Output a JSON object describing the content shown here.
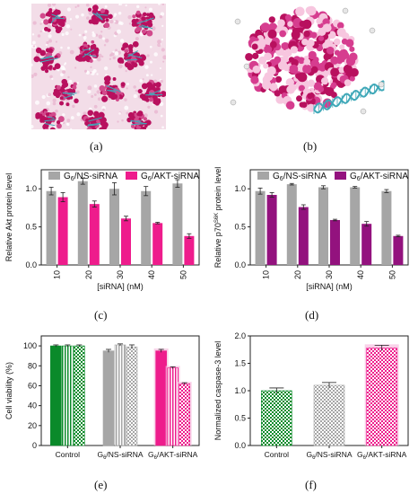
{
  "panel_labels": [
    "(a)",
    "(b)",
    "(c)",
    "(d)",
    "(e)",
    "(f)"
  ],
  "colors": {
    "grey": "#a6a6a6",
    "pink": "#ee1c8c",
    "purple": "#93127e",
    "green": "#0a8a2a",
    "light_pink": "#f7bfe0",
    "dark_pink": "#b8105e",
    "cyan": "#3fa8b8"
  },
  "chart_data": [
    {
      "panel": "(c)",
      "type": "bar",
      "ylabel": "Relative Akt protein level",
      "xlabel": "[siRNA] (nM)",
      "categories": [
        "10",
        "20",
        "30",
        "40",
        "50"
      ],
      "ylim": [
        0,
        1.25
      ],
      "yticks": [
        "0.0",
        "0.5",
        "1.0"
      ],
      "legend_position": "top",
      "series": [
        {
          "name": "G6/NS-siRNA",
          "color": "#a6a6a6",
          "values": [
            0.97,
            1.1,
            1.0,
            0.97,
            1.07
          ],
          "errors": [
            0.05,
            0.04,
            0.08,
            0.06,
            0.05
          ]
        },
        {
          "name": "G6/AKT-siRNA",
          "color": "#ee1c8c",
          "values": [
            0.89,
            0.8,
            0.61,
            0.55,
            0.38
          ],
          "errors": [
            0.06,
            0.04,
            0.03,
            0.01,
            0.03
          ]
        }
      ]
    },
    {
      "panel": "(d)",
      "type": "bar",
      "ylabel": "Relative p70S6K protein level",
      "xlabel": "[siRNA] (nM)",
      "categories": [
        "10",
        "20",
        "30",
        "40",
        "50"
      ],
      "ylim": [
        0,
        1.25
      ],
      "yticks": [
        "0.0",
        "0.5",
        "1.0"
      ],
      "legend_position": "top",
      "series": [
        {
          "name": "G6/NS-siRNA",
          "color": "#a6a6a6",
          "values": [
            0.97,
            1.06,
            1.02,
            1.02,
            0.97
          ],
          "errors": [
            0.04,
            0.01,
            0.02,
            0.01,
            0.02
          ]
        },
        {
          "name": "G6/AKT-siRNA",
          "color": "#93127e",
          "values": [
            0.92,
            0.76,
            0.59,
            0.54,
            0.38
          ],
          "errors": [
            0.03,
            0.03,
            0.01,
            0.03,
            0.01
          ]
        }
      ]
    },
    {
      "panel": "(e)",
      "type": "bar",
      "ylabel": "Cell viability (%)",
      "categories": [
        "Control",
        "G6/NS-siRNA",
        "G6/AKT-siRNA"
      ],
      "ylim": [
        0,
        110
      ],
      "yticks": [
        "0",
        "20",
        "40",
        "60",
        "80",
        "100"
      ],
      "series": [
        {
          "pattern": "solid",
          "values": [
            100,
            95,
            95
          ],
          "errors": [
            1,
            1.5,
            1.5
          ]
        },
        {
          "pattern": "vertical-stripes",
          "values": [
            100,
            101,
            78
          ],
          "errors": [
            1,
            1,
            1
          ]
        },
        {
          "pattern": "checker",
          "values": [
            100,
            99,
            62
          ],
          "errors": [
            1,
            2,
            1
          ]
        }
      ]
    },
    {
      "panel": "(f)",
      "type": "bar",
      "ylabel": "Normalized caspase-3 level",
      "categories": [
        "Control",
        "G6/NS-siRNA",
        "G6/AKT-siRNA"
      ],
      "ylim": [
        0,
        2.0
      ],
      "yticks": [
        "0.0",
        "0.5",
        "1.0",
        "1.5",
        "2.0"
      ],
      "series": [
        {
          "pattern": "checker",
          "values": [
            1.0,
            1.1,
            1.78
          ],
          "errors": [
            0.05,
            0.05,
            0.05
          ]
        }
      ]
    }
  ]
}
